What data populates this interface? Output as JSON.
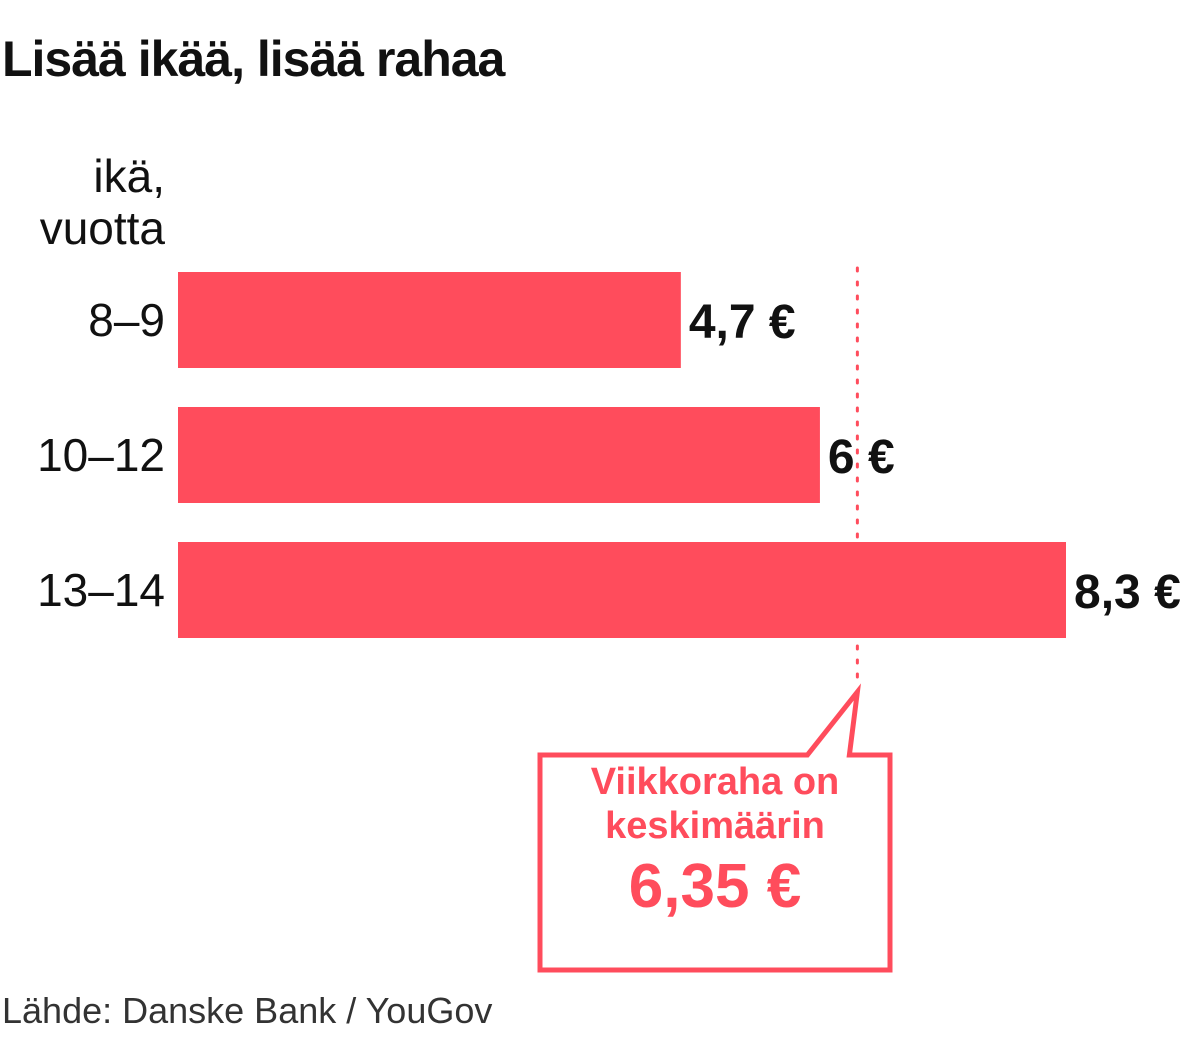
{
  "title": "Lisää ikää, lisää rahaa",
  "axis_label_line1": "ikä,",
  "axis_label_line2": "vuotta",
  "source": "Lähde: Danske Bank / YouGov",
  "colors": {
    "bar": "#ff4c5c",
    "text": "#111111"
  },
  "chart_data": {
    "type": "bar",
    "orientation": "horizontal",
    "categories": [
      "8–9",
      "10–12",
      "13–14"
    ],
    "values": [
      4.7,
      6.0,
      8.3
    ],
    "value_labels": [
      "4,7 €",
      "6 €",
      "8,3 €"
    ],
    "title": "Lisää ikää, lisää rahaa",
    "xlim": [
      0,
      8.3
    ],
    "grid": false,
    "reference_line": {
      "value": 6.35,
      "label_line1": "Viikkoraha on",
      "label_line2": "keskimäärin",
      "value_label": "6,35 €"
    }
  }
}
